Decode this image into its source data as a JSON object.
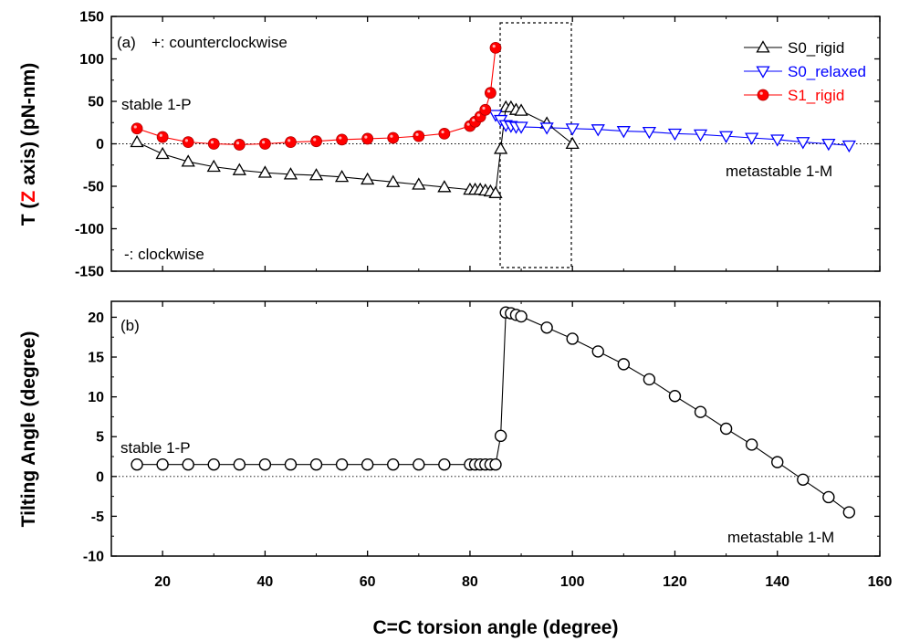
{
  "chart_data": [
    {
      "panel": "(a)",
      "type": "line",
      "ylabel_parts": [
        "T (",
        "Z",
        " axis) (pN-nm)"
      ],
      "ylim": [
        -150,
        150
      ],
      "yticks": [
        -150,
        -100,
        -50,
        0,
        50,
        100,
        150
      ],
      "xlim": [
        10,
        160
      ],
      "grid": false,
      "legend_position": "top-right",
      "colors": {
        "S0_rigid": "#000000",
        "S0_relaxed": "#0000ff",
        "S1_rigid": "#ff0000",
        "z_highlight": "#ff0000"
      },
      "annotations": {
        "panel_label": "(a)",
        "positive": "+: counterclockwise",
        "negative": "-: clockwise",
        "left_state": "stable 1-P",
        "right_state": "metastable 1-M"
      },
      "series": [
        {
          "name": "S0_rigid",
          "marker": "triangle-up",
          "x": [
            15,
            20,
            25,
            30,
            35,
            40,
            45,
            50,
            55,
            60,
            65,
            70,
            75,
            80,
            81,
            82,
            83,
            84,
            85,
            86,
            87,
            88,
            89,
            90,
            95,
            100
          ],
          "y": [
            2,
            -12,
            -21,
            -27,
            -31,
            -34,
            -36,
            -37,
            -39,
            -42,
            -45,
            -48,
            -51,
            -54,
            -54,
            -54,
            -55,
            -56,
            -58,
            -6,
            43,
            43,
            40,
            39,
            24,
            0
          ]
        },
        {
          "name": "S0_relaxed",
          "marker": "triangle-down",
          "x": [
            85,
            86,
            87,
            88,
            89,
            90,
            95,
            100,
            105,
            110,
            115,
            120,
            125,
            130,
            135,
            140,
            145,
            150,
            154
          ],
          "y": [
            34,
            28,
            22,
            21,
            20,
            20,
            19,
            18,
            17,
            15,
            14,
            12,
            11,
            9,
            7,
            5,
            2,
            0,
            -2
          ]
        },
        {
          "name": "S1_rigid",
          "marker": "circle-filled",
          "x": [
            15,
            20,
            25,
            30,
            35,
            40,
            45,
            50,
            55,
            60,
            65,
            70,
            75,
            80,
            81,
            82,
            83,
            84,
            85
          ],
          "y": [
            18,
            8,
            2,
            0,
            -1,
            0,
            2,
            3,
            5,
            6,
            7,
            9,
            12,
            21,
            26,
            32,
            40,
            60,
            113
          ]
        }
      ]
    },
    {
      "panel": "(b)",
      "type": "line",
      "ylabel": "Tilting Angle (degree)",
      "xlabel": "C=C torsion angle (degree)",
      "ylim": [
        -10,
        22
      ],
      "yticks": [
        -10,
        -5,
        0,
        5,
        10,
        15,
        20
      ],
      "xlim": [
        10,
        160
      ],
      "xticks": [
        20,
        40,
        60,
        80,
        100,
        120,
        140,
        160
      ],
      "grid": false,
      "annotations": {
        "panel_label": "(b)",
        "left_state": "stable 1-P",
        "right_state": "metastable 1-M"
      },
      "series": [
        {
          "marker": "circle-open",
          "x": [
            15,
            20,
            25,
            30,
            35,
            40,
            45,
            50,
            55,
            60,
            65,
            70,
            75,
            80,
            81,
            82,
            83,
            84,
            85,
            86,
            87,
            88,
            89,
            90,
            95,
            100,
            105,
            110,
            115,
            120,
            125,
            130,
            135,
            140,
            145,
            150,
            154
          ],
          "y": [
            1.5,
            1.5,
            1.5,
            1.5,
            1.5,
            1.5,
            1.5,
            1.5,
            1.5,
            1.5,
            1.5,
            1.5,
            1.5,
            1.5,
            1.5,
            1.5,
            1.5,
            1.5,
            1.5,
            5.1,
            20.6,
            20.5,
            20.3,
            20.1,
            18.7,
            17.3,
            15.7,
            14.1,
            12.2,
            10.1,
            8.1,
            6.0,
            4.0,
            1.8,
            -0.4,
            -2.6,
            -4.5
          ]
        }
      ]
    }
  ]
}
